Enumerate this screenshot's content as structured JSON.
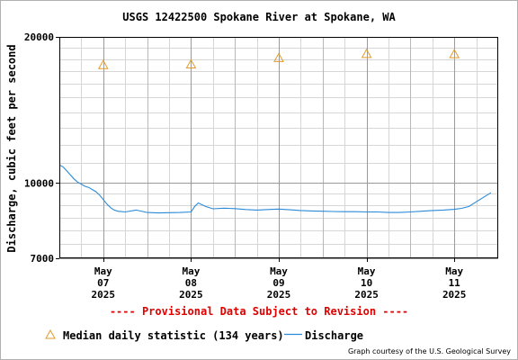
{
  "chart_data": {
    "type": "line",
    "title": "USGS 12422500 Spokane River at Spokane, WA",
    "ylabel": "Discharge, cubic feet per second",
    "y_scale": "log",
    "ylim": [
      7000,
      20000
    ],
    "y_ticks": [
      {
        "value": 7000,
        "label": "7000"
      },
      {
        "value": 10000,
        "label": "10000"
      },
      {
        "value": 20000,
        "label": "20000"
      }
    ],
    "xlim": [
      "2025-05-06 12:00",
      "2025-05-11 12:00"
    ],
    "x_ticks": [
      {
        "value": "2025-05-07 00:00",
        "month": "May",
        "day": "07",
        "year": "2025"
      },
      {
        "value": "2025-05-08 00:00",
        "month": "May",
        "day": "08",
        "year": "2025"
      },
      {
        "value": "2025-05-09 00:00",
        "month": "May",
        "day": "09",
        "year": "2025"
      },
      {
        "value": "2025-05-10 00:00",
        "month": "May",
        "day": "10",
        "year": "2025"
      },
      {
        "value": "2025-05-11 00:00",
        "month": "May",
        "day": "11",
        "year": "2025"
      }
    ],
    "grid": true,
    "legend_position": "bottom",
    "series": [
      {
        "name": "Discharge",
        "color": "#2a8ad8",
        "x": [
          "2025-05-06 12:00",
          "2025-05-06 13:00",
          "2025-05-06 14:00",
          "2025-05-06 15:00",
          "2025-05-06 16:00",
          "2025-05-06 17:00",
          "2025-05-06 18:00",
          "2025-05-06 19:00",
          "2025-05-06 20:00",
          "2025-05-06 21:00",
          "2025-05-06 22:00",
          "2025-05-06 23:00",
          "2025-05-07 00:00",
          "2025-05-07 01:00",
          "2025-05-07 02:00",
          "2025-05-07 03:00",
          "2025-05-07 04:00",
          "2025-05-07 06:00",
          "2025-05-07 09:00",
          "2025-05-07 12:00",
          "2025-05-07 15:00",
          "2025-05-07 18:00",
          "2025-05-07 21:00",
          "2025-05-08 00:00",
          "2025-05-08 01:00",
          "2025-05-08 02:00",
          "2025-05-08 04:00",
          "2025-05-08 06:00",
          "2025-05-08 09:00",
          "2025-05-08 12:00",
          "2025-05-08 15:00",
          "2025-05-08 18:00",
          "2025-05-08 21:00",
          "2025-05-09 00:00",
          "2025-05-09 03:00",
          "2025-05-09 06:00",
          "2025-05-09 09:00",
          "2025-05-09 12:00",
          "2025-05-09 15:00",
          "2025-05-09 18:00",
          "2025-05-09 21:00",
          "2025-05-10 00:00",
          "2025-05-10 03:00",
          "2025-05-10 06:00",
          "2025-05-10 09:00",
          "2025-05-10 12:00",
          "2025-05-10 15:00",
          "2025-05-10 18:00",
          "2025-05-10 21:00",
          "2025-05-11 00:00",
          "2025-05-11 02:00",
          "2025-05-11 04:00",
          "2025-05-11 06:00",
          "2025-05-11 08:00",
          "2025-05-11 10:00"
        ],
        "y": [
          10900,
          10800,
          10600,
          10400,
          10200,
          10050,
          9950,
          9850,
          9800,
          9700,
          9600,
          9450,
          9250,
          9050,
          8900,
          8800,
          8750,
          8720,
          8800,
          8700,
          8680,
          8690,
          8700,
          8720,
          8950,
          9100,
          8950,
          8850,
          8880,
          8860,
          8820,
          8800,
          8820,
          8840,
          8810,
          8780,
          8760,
          8750,
          8740,
          8730,
          8730,
          8720,
          8720,
          8700,
          8700,
          8720,
          8750,
          8780,
          8800,
          8830,
          8870,
          8950,
          9150,
          9350,
          9550
        ]
      }
    ],
    "median": {
      "name": "Median daily statistic (134 years)",
      "color": "#e39a2b",
      "x": [
        "2025-05-07 00:00",
        "2025-05-08 00:00",
        "2025-05-09 00:00",
        "2025-05-10 00:00",
        "2025-05-11 00:00"
      ],
      "y": [
        17500,
        17560,
        18100,
        18450,
        18430
      ]
    },
    "subtitle": "---- Provisional Data Subject to Revision ----",
    "credit": "Graph courtesy of the U.S. Geological Survey"
  }
}
